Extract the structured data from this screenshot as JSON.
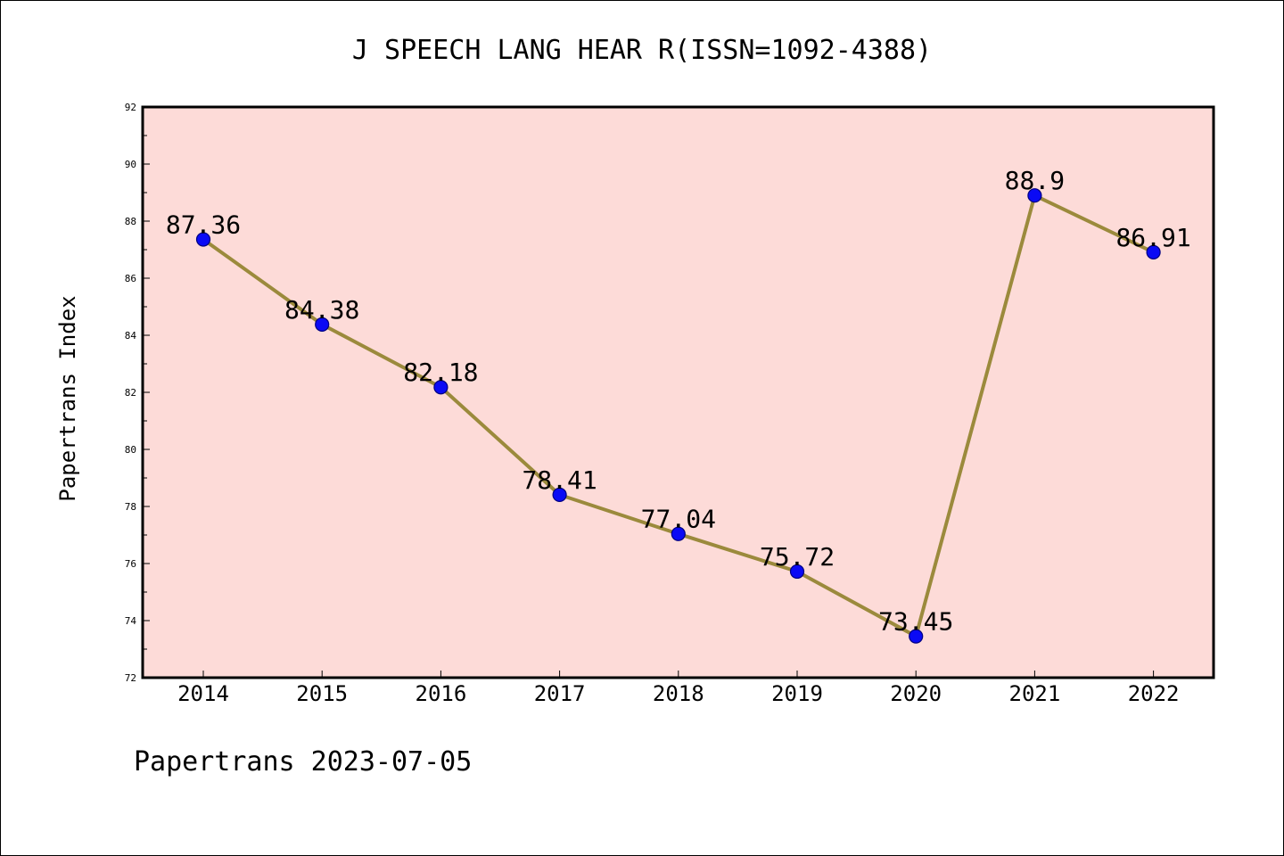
{
  "chart_data": {
    "type": "line",
    "title": "J SPEECH LANG HEAR R(ISSN=1092-4388)",
    "ylabel": "Papertrans Index",
    "xlabel": "",
    "categories": [
      "2014",
      "2015",
      "2016",
      "2017",
      "2018",
      "2019",
      "2020",
      "2021",
      "2022"
    ],
    "values": [
      87.36,
      84.38,
      82.18,
      78.41,
      77.04,
      75.72,
      73.45,
      88.9,
      86.91
    ],
    "data_labels": [
      "87.36",
      "84.38",
      "82.18",
      "78.41",
      "77.04",
      "75.72",
      "73.45",
      "88.9",
      "86.91"
    ],
    "ylim": [
      72,
      92
    ],
    "yticks": [
      "72",
      "74",
      "76",
      "78",
      "80",
      "82",
      "84",
      "86",
      "88",
      "90",
      "92"
    ],
    "grid": false,
    "legend": false,
    "colors": {
      "plot_background": "#fddbd8",
      "line": "#9b8a3c",
      "marker": "#0a0af5",
      "marker_edge": "#000080"
    }
  },
  "footer": "Papertrans 2023-07-05"
}
